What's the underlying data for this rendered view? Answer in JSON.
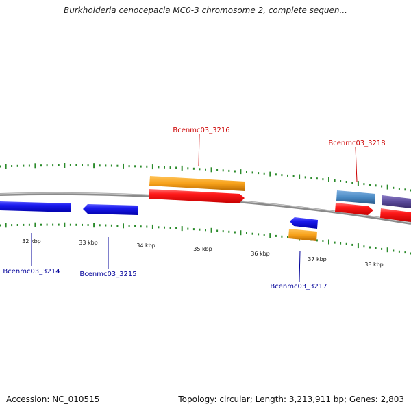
{
  "title": "Burkholderia cenocepacia MC0-3 chromosome 2, complete sequen...",
  "footer": {
    "accession_label": "Accession:",
    "accession": "NC_010515",
    "summary": "Topology: circular; Length: 3,213,911 bp; Genes: 2,803"
  },
  "colors": {
    "backbone": "#8a8a8a",
    "tick": "#2a8a2a",
    "gene_forward": "#ee1111",
    "gene_reverse": "#1111dd",
    "cds_orange": "#f7a11a",
    "cds_lightblue": "#4a8ac4",
    "cds_purple": "#5a4a9a",
    "label_forward": "#cc0000",
    "label_reverse": "#000099"
  },
  "scale_labels": [
    "32 kbp",
    "33 kbp",
    "34 kbp",
    "35 kbp",
    "36 kbp",
    "37 kbp",
    "38 kbp"
  ],
  "genes": [
    {
      "id": "Bcenmc03_3214",
      "strand": "reverse"
    },
    {
      "id": "Bcenmc03_3215",
      "strand": "reverse"
    },
    {
      "id": "Bcenmc03_3216",
      "strand": "forward"
    },
    {
      "id": "Bcenmc03_3217",
      "strand": "reverse"
    },
    {
      "id": "Bcenmc03_3218",
      "strand": "forward"
    }
  ]
}
